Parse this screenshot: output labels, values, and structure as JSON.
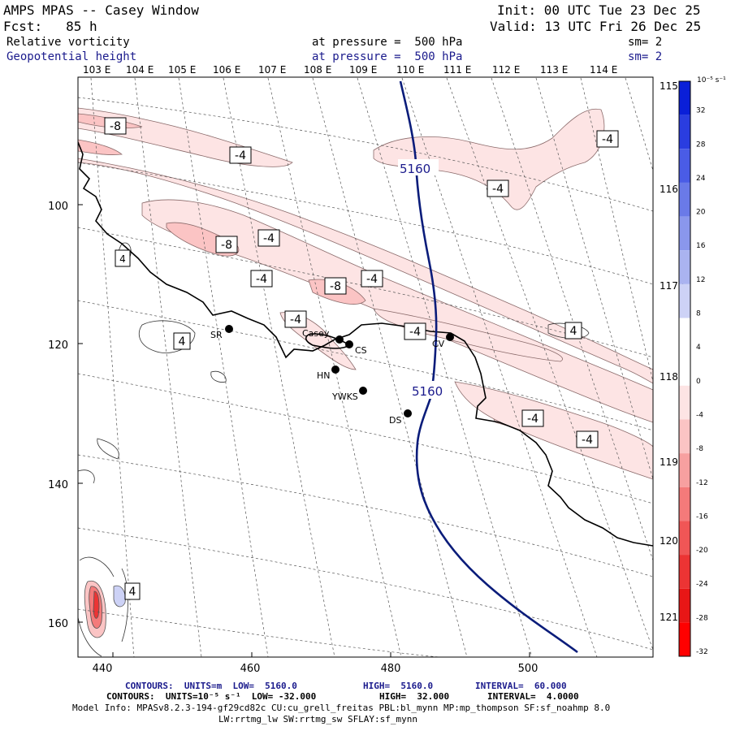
{
  "header": {
    "title": "AMPS MPAS -- Casey Window",
    "forecast": "Fcst:   85 h",
    "init": "Init: 00 UTC Tue 23 Dec 25",
    "valid": "Valid: 13 UTC Fri 26 Dec 25",
    "field1_name": "Relative vorticity",
    "field1_level": "at pressure =  500 hPa",
    "field1_sm": "sm= 2",
    "field2_name": "Geopotential height",
    "field2_level": "at pressure =  500 hPa",
    "field2_sm": "sm= 2"
  },
  "map": {
    "top_lon_labels": [
      "103 E",
      "104 E",
      "105 E",
      "106 E",
      "107 E",
      "108 E",
      "109 E",
      "110 E",
      "111 E",
      "112 E",
      "113 E",
      "114 E"
    ],
    "right_lon_labels": [
      "115 E",
      "116 E",
      "117 E",
      "118 E",
      "119 E",
      "120 E",
      "121 E"
    ],
    "y_ticks": [
      "100",
      "120",
      "140",
      "160"
    ],
    "x_ticks": [
      "440",
      "460",
      "480",
      "500"
    ],
    "stations": [
      {
        "name": "SR"
      },
      {
        "name": "Casey"
      },
      {
        "name": "CS"
      },
      {
        "name": "HN"
      },
      {
        "name": "YWKS"
      },
      {
        "name": "DS"
      },
      {
        "name": "CV"
      }
    ],
    "vort_labels": [
      "-8",
      "-4",
      "-4",
      "-8",
      "-4",
      "-4",
      "-8",
      "-4",
      "-4",
      "-4",
      "4",
      "4",
      "-4",
      "-4",
      "-4",
      "4"
    ],
    "height_labels": [
      "5160",
      "5160"
    ]
  },
  "colorbar": {
    "units": "10⁻⁵ s⁻¹",
    "values": [
      "32",
      "28",
      "24",
      "20",
      "16",
      "12",
      "8",
      "4",
      "0",
      "-4",
      "-8",
      "-12",
      "-16",
      "-20",
      "-24",
      "-28",
      "-32"
    ],
    "colors": [
      "#0a1fd8",
      "#2a3de0",
      "#4a5ce6",
      "#6a7ae8",
      "#8a97ec",
      "#aab3f0",
      "#cdd2f6",
      "#ffffff",
      "#ffffff",
      "#fde4e4",
      "#fbc4c4",
      "#f7a0a0",
      "#f47a7a",
      "#f05656",
      "#ec3434",
      "#e81616",
      "#ff0000"
    ]
  },
  "footer": {
    "line1_a": "CONTOURS:  UNITS=m  LOW=  5160.0",
    "line1_b": "HIGH=  5160.0",
    "line1_c": "INTERVAL=  60.000",
    "line2_a": "CONTOURS:  UNITS=10⁻⁵ s⁻¹  LOW= -32.000",
    "line2_b": "HIGH=  32.000",
    "line2_c": "INTERVAL=  4.0000",
    "line3": "Model Info: MPASv8.2.3-194-gf29cd82c CU:cu_grell_freitas PBL:bl_mynn MP:mp_thompson SF:sf_noahmp 8.0",
    "line4": "LW:rrtmg_lw SW:rrtmg_sw SFLAY:sf_mynn"
  }
}
